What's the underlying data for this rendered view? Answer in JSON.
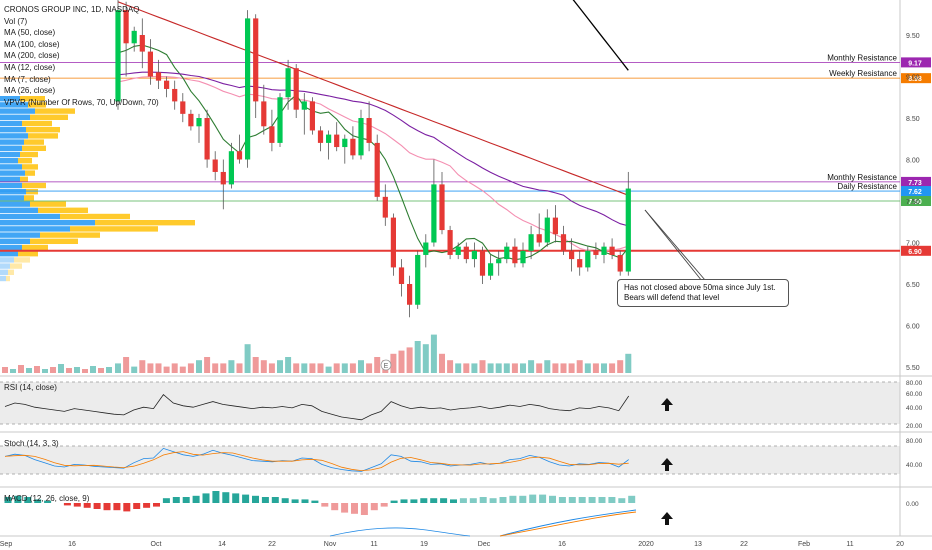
{
  "symbol": {
    "title": "CRONOS GROUP INC, 1D, NASDAQ",
    "indicators": [
      "Vol (7)",
      "MA (50, close)",
      "MA (100, close)",
      "MA (200, close)",
      "MA (12, close)",
      "MA (7, close)",
      "MA (26, close)",
      "VPVR (Number Of Rows, 70, Up/Down, 70)"
    ]
  },
  "price_axis": {
    "ticks": [
      "9.50",
      "9.00",
      "8.50",
      "8.00",
      "7.50",
      "7.00",
      "6.50",
      "6.00",
      "5.50"
    ],
    "tick_values": [
      9.5,
      9.0,
      8.5,
      8.0,
      7.5,
      7.0,
      6.5,
      6.0,
      5.5
    ]
  },
  "levels": [
    {
      "label": "Monthly Resistance",
      "value": 9.17,
      "badge": "9.17",
      "color": "#9c27b0"
    },
    {
      "label": "Weekly Resistance",
      "value": 8.98,
      "badge": "8.98",
      "color": "#f57c00"
    },
    {
      "label": "Monthly Resistance",
      "value": 7.73,
      "badge": "7.73",
      "color": "#9c27b0"
    },
    {
      "label": "Daily Resistance",
      "value": 7.62,
      "badge": "7.62",
      "color": "#2196f3"
    },
    {
      "label": "",
      "value": 7.5,
      "badge": "7.50",
      "color": "#4caf50"
    },
    {
      "label": "",
      "value": 6.9,
      "badge": "6.90",
      "color": "#e53935"
    }
  ],
  "annotation": {
    "line1": "Has not closed above 50ma since July 1st.",
    "line2": "Bears will defend that level"
  },
  "earnings_marker": "E",
  "rsi": {
    "label": "RSI (14, close)",
    "ticks": [
      "80.00",
      "60.00",
      "40.00",
      "20.00"
    ]
  },
  "stoch": {
    "label": "Stoch (14, 3, 3)",
    "ticks": [
      "80.00",
      "40.00"
    ]
  },
  "macd": {
    "label": "MACD (12, 26, close, 9)",
    "ticks": [
      "0.00"
    ]
  },
  "time_axis": {
    "labels": [
      "Sep",
      "16",
      "Oct",
      "14",
      "22",
      "Nov",
      "11",
      "19",
      "Dec",
      "16",
      "2020",
      "13",
      "22",
      "Feb",
      "11",
      "20"
    ]
  },
  "colors": {
    "up": "#26a69a",
    "up_bright": "#00c853",
    "down": "#e53935",
    "ma50": "#7b1fa2",
    "ma100": "#c62828",
    "ma200": "#000000",
    "ma12": "#2e7d32",
    "ma26": "#f48fb1",
    "vpvr_up": "#2196f3",
    "vpvr_down": "#ffc107"
  },
  "chart_data": {
    "type": "candlestick",
    "title": "CRONOS GROUP INC, 1D, NASDAQ",
    "ylim": [
      5.5,
      9.8
    ],
    "ohlc": [
      [
        8.7,
        9.95,
        8.6,
        9.8
      ],
      [
        9.8,
        9.9,
        9.0,
        9.4
      ],
      [
        9.4,
        9.6,
        9.3,
        9.55
      ],
      [
        9.5,
        9.7,
        9.1,
        9.3
      ],
      [
        9.3,
        9.45,
        8.9,
        9.0
      ],
      [
        9.05,
        9.2,
        8.85,
        8.95
      ],
      [
        8.95,
        9.0,
        8.75,
        8.85
      ],
      [
        8.85,
        8.95,
        8.6,
        8.7
      ],
      [
        8.7,
        8.8,
        8.45,
        8.55
      ],
      [
        8.55,
        8.6,
        8.35,
        8.4
      ],
      [
        8.4,
        8.55,
        8.2,
        8.5
      ],
      [
        8.5,
        8.6,
        7.9,
        8.0
      ],
      [
        8.0,
        8.1,
        7.75,
        7.85
      ],
      [
        7.85,
        8.0,
        7.4,
        7.7
      ],
      [
        7.7,
        8.2,
        7.65,
        8.1
      ],
      [
        8.1,
        8.3,
        7.95,
        8.0
      ],
      [
        8.0,
        9.8,
        7.9,
        9.7
      ],
      [
        9.7,
        9.75,
        8.5,
        8.7
      ],
      [
        8.7,
        8.9,
        8.3,
        8.4
      ],
      [
        8.4,
        8.6,
        8.1,
        8.2
      ],
      [
        8.2,
        8.8,
        8.15,
        8.75
      ],
      [
        8.75,
        9.2,
        8.6,
        9.1
      ],
      [
        9.1,
        9.15,
        8.5,
        8.6
      ],
      [
        8.6,
        8.8,
        8.3,
        8.7
      ],
      [
        8.7,
        8.75,
        8.3,
        8.35
      ],
      [
        8.35,
        8.4,
        8.1,
        8.2
      ],
      [
        8.2,
        8.35,
        8.0,
        8.3
      ],
      [
        8.3,
        8.45,
        8.1,
        8.15
      ],
      [
        8.15,
        8.3,
        7.95,
        8.25
      ],
      [
        8.25,
        8.4,
        8.0,
        8.05
      ],
      [
        8.05,
        8.6,
        8.0,
        8.5
      ],
      [
        8.5,
        8.7,
        8.1,
        8.2
      ],
      [
        8.2,
        8.3,
        7.5,
        7.55
      ],
      [
        7.55,
        7.7,
        7.2,
        7.3
      ],
      [
        7.3,
        7.35,
        6.6,
        6.7
      ],
      [
        6.7,
        6.8,
        6.35,
        6.5
      ],
      [
        6.5,
        6.6,
        6.1,
        6.25
      ],
      [
        6.25,
        6.9,
        6.2,
        6.85
      ],
      [
        6.85,
        7.1,
        6.7,
        7.0
      ],
      [
        7.0,
        8.0,
        6.95,
        7.7
      ],
      [
        7.7,
        7.85,
        7.1,
        7.15
      ],
      [
        7.15,
        7.2,
        6.8,
        6.85
      ],
      [
        6.85,
        7.0,
        6.8,
        6.95
      ],
      [
        6.95,
        7.0,
        6.75,
        6.8
      ],
      [
        6.8,
        7.0,
        6.7,
        6.9
      ],
      [
        6.9,
        6.95,
        6.5,
        6.6
      ],
      [
        6.6,
        6.85,
        6.55,
        6.75
      ],
      [
        6.75,
        6.9,
        6.6,
        6.8
      ],
      [
        6.8,
        7.0,
        6.75,
        6.95
      ],
      [
        6.95,
        7.05,
        6.7,
        6.75
      ],
      [
        6.75,
        7.0,
        6.7,
        6.9
      ],
      [
        6.9,
        7.2,
        6.8,
        7.1
      ],
      [
        7.1,
        7.35,
        6.95,
        7.0
      ],
      [
        7.0,
        7.4,
        6.95,
        7.3
      ],
      [
        7.3,
        7.45,
        7.0,
        7.1
      ],
      [
        7.1,
        7.2,
        6.85,
        6.9
      ],
      [
        6.9,
        7.05,
        6.65,
        6.8
      ],
      [
        6.8,
        6.9,
        6.6,
        6.7
      ],
      [
        6.7,
        6.95,
        6.65,
        6.9
      ],
      [
        6.9,
        7.0,
        6.8,
        6.85
      ],
      [
        6.85,
        7.0,
        6.75,
        6.95
      ],
      [
        6.95,
        7.05,
        6.8,
        6.85
      ],
      [
        6.85,
        6.9,
        6.6,
        6.65
      ],
      [
        6.65,
        7.85,
        6.6,
        7.65
      ]
    ],
    "volume": [
      3,
      5,
      2,
      4,
      3,
      3,
      2,
      3,
      2,
      3,
      4,
      5,
      3,
      3,
      4,
      3,
      9,
      5,
      4,
      3,
      4,
      5,
      3,
      3,
      3,
      3,
      2,
      3,
      3,
      3,
      4,
      3,
      5,
      4,
      6,
      7,
      8,
      10,
      9,
      12,
      6,
      4,
      3,
      3,
      3,
      4,
      3,
      3,
      3,
      3,
      3,
      4,
      3,
      4,
      3,
      3,
      3,
      4,
      3,
      3,
      3,
      3,
      4,
      6
    ],
    "rsi": [
      45,
      50,
      48,
      44,
      42,
      40,
      38,
      42,
      40,
      38,
      36,
      34,
      33,
      40,
      44,
      42,
      62,
      50,
      46,
      44,
      48,
      52,
      48,
      46,
      44,
      42,
      44,
      43,
      45,
      43,
      48,
      46,
      38,
      34,
      30,
      28,
      26,
      33,
      38,
      52,
      46,
      42,
      44,
      42,
      43,
      40,
      42,
      43,
      45,
      42,
      44,
      47,
      45,
      48,
      46,
      42,
      40,
      39,
      43,
      42,
      45,
      43,
      39,
      60
    ],
    "stoch_k": [
      55,
      62,
      58,
      45,
      35,
      25,
      22,
      30,
      28,
      24,
      22,
      20,
      18,
      35,
      48,
      50,
      80,
      70,
      60,
      55,
      62,
      74,
      65,
      58,
      50,
      42,
      40,
      38,
      42,
      40,
      50,
      48,
      30,
      20,
      14,
      10,
      8,
      20,
      32,
      60,
      55,
      40,
      38,
      30,
      32,
      25,
      28,
      30,
      36,
      30,
      34,
      45,
      48,
      58,
      52,
      38,
      28,
      25,
      32,
      30,
      36,
      34,
      22,
      45
    ],
    "macd_hist": [
      0.05,
      0.06,
      0.05,
      0.03,
      0.02,
      0.0,
      -0.02,
      -0.03,
      -0.04,
      -0.05,
      -0.06,
      -0.06,
      -0.07,
      -0.05,
      -0.04,
      -0.03,
      0.04,
      0.05,
      0.05,
      0.06,
      0.08,
      0.1,
      0.09,
      0.08,
      0.07,
      0.06,
      0.05,
      0.05,
      0.04,
      0.03,
      0.03,
      0.02,
      -0.03,
      -0.06,
      -0.08,
      -0.09,
      -0.1,
      -0.06,
      -0.03,
      0.02,
      0.03,
      0.03,
      0.04,
      0.04,
      0.04,
      0.03,
      0.04,
      0.04,
      0.05,
      0.04,
      0.05,
      0.06,
      0.06,
      0.07,
      0.07,
      0.06,
      0.05,
      0.05,
      0.05,
      0.05,
      0.05,
      0.05,
      0.04,
      0.06
    ]
  }
}
